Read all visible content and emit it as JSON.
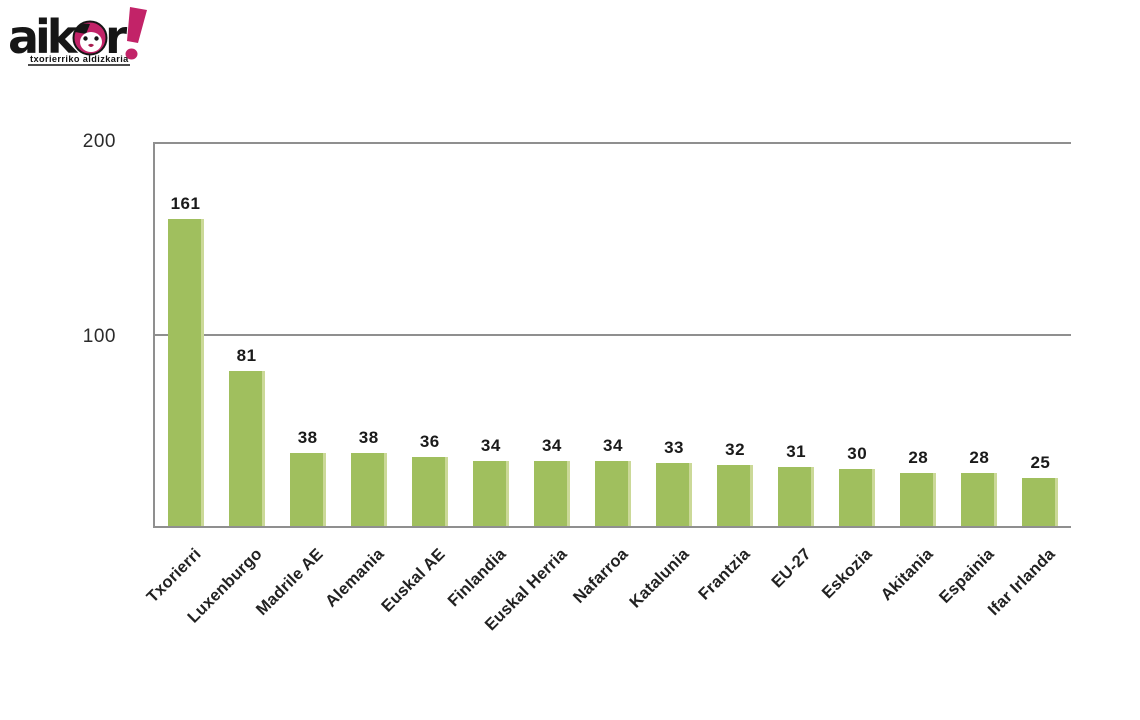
{
  "logo": {
    "word_start": "aik",
    "word_end": "r",
    "exclamation": "!",
    "tagline": "txorierriko aldizkaria",
    "brand_black": "#161616",
    "brand_magenta": "#c22368"
  },
  "chart_data": {
    "type": "bar",
    "title": "",
    "xlabel": "",
    "ylabel": "",
    "categories": [
      "Txorierri",
      "Luxenburgo",
      "Madrile AE",
      "Alemania",
      "Euskal AE",
      "Finlandia",
      "Euskal Herria",
      "Nafarroa",
      "Katalunia",
      "Frantzia",
      "EU-27",
      "Eskozia",
      "Akitania",
      "Espainia",
      "Ifar Irlanda"
    ],
    "values": [
      161,
      81,
      38,
      38,
      36,
      34,
      34,
      34,
      33,
      32,
      31,
      30,
      28,
      28,
      25
    ],
    "ylim": [
      0,
      200
    ],
    "ytick_labels": [
      "200",
      "100"
    ],
    "grid": "horizontal-at-100",
    "legend": "none",
    "value_labels_shown": true,
    "bar_color": "#a0bf5e",
    "bar_edge_color": "#cbd998",
    "axis_color": "#8f8f8f",
    "label_rotation_deg": -45
  }
}
